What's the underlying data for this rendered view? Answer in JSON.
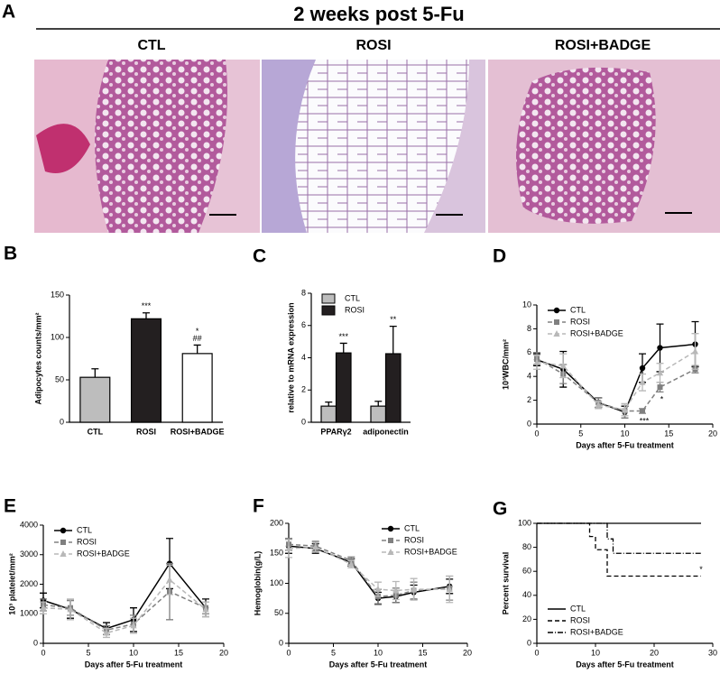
{
  "figure": {
    "panel_labels": [
      "A",
      "B",
      "C",
      "D",
      "E",
      "F",
      "G"
    ],
    "title": "2 weeks post 5-Fu",
    "image_labels": [
      "CTL",
      "ROSI",
      "ROSI+BADGE"
    ]
  },
  "chart_data": [
    {
      "type": "bar",
      "y_label": "Adipocytes counts/mm²",
      "categories": [
        "CTL",
        "ROSI",
        "ROSI+BADGE"
      ],
      "values": [
        53,
        122,
        81
      ],
      "errors": [
        10,
        7,
        10
      ],
      "colors": [
        "#bdbdbd",
        "#231f20",
        "#ffffff"
      ],
      "annotations": [
        null,
        [
          "***"
        ],
        [
          "*",
          "##"
        ]
      ],
      "ylim": [
        0,
        150
      ],
      "yticks": [
        0,
        50,
        100,
        150
      ]
    },
    {
      "type": "bar",
      "y_label": "relative to mRNA expression",
      "categories": [
        "PPARγ2",
        "adiponectin"
      ],
      "series": [
        {
          "name": "CTL",
          "color": "#bdbdbd",
          "values": [
            1.0,
            1.0
          ],
          "errors": [
            0.25,
            0.3
          ]
        },
        {
          "name": "ROSI",
          "color": "#231f20",
          "values": [
            4.3,
            4.25
          ],
          "errors": [
            0.6,
            1.7
          ],
          "annotations": [
            "***",
            "**"
          ]
        }
      ],
      "ylim": [
        0,
        8
      ],
      "yticks": [
        0,
        2,
        4,
        6,
        8
      ],
      "legend": "upper left"
    },
    {
      "type": "line",
      "x_label": "Days after 5-Fu treatment",
      "y_label": "10³WBC/mm²",
      "x": [
        0,
        3,
        7,
        10,
        12,
        14,
        18
      ],
      "series": [
        {
          "name": "CTL",
          "color": "#000000",
          "marker": "circle",
          "dash": "solid",
          "values": [
            5.4,
            4.6,
            1.8,
            1.0,
            4.7,
            6.4,
            6.7
          ],
          "errors": [
            0.5,
            1.5,
            0.4,
            0.5,
            1.2,
            2.0,
            1.9
          ]
        },
        {
          "name": "ROSI",
          "color": "#808080",
          "marker": "square",
          "dash": "dashed",
          "values": [
            5.5,
            4.2,
            1.8,
            1.1,
            1.1,
            3.1,
            4.6
          ],
          "errors": [
            0.5,
            0.8,
            0.4,
            0.6,
            0.2,
            0.4,
            0.3
          ],
          "annotations": [
            null,
            null,
            null,
            null,
            "***",
            "*",
            null
          ]
        },
        {
          "name": "ROSI+BADGE",
          "color": "#b8b8b8",
          "marker": "triangle",
          "dash": "dashed",
          "values": [
            5.2,
            4.9,
            1.6,
            1.2,
            3.5,
            4.3,
            6.1
          ],
          "errors": [
            0.6,
            1.0,
            0.3,
            0.5,
            0.7,
            0.8,
            1.5
          ]
        }
      ],
      "xlim": [
        0,
        20
      ],
      "xticks": [
        0,
        5,
        10,
        15,
        20
      ],
      "ylim": [
        0,
        10
      ],
      "yticks": [
        0,
        2,
        4,
        6,
        8,
        10
      ],
      "legend": "upper left"
    },
    {
      "type": "line",
      "x_label": "Days after 5-Fu treatment",
      "y_label": "10³ platelet/mm²",
      "x": [
        0,
        3,
        7,
        10,
        14,
        18
      ],
      "series": [
        {
          "name": "CTL",
          "color": "#000000",
          "marker": "circle",
          "dash": "solid",
          "values": [
            1450,
            1150,
            500,
            800,
            2700,
            1200
          ],
          "errors": [
            250,
            300,
            200,
            400,
            850,
            300
          ]
        },
        {
          "name": "ROSI",
          "color": "#808080",
          "marker": "square",
          "dash": "dashed",
          "values": [
            1300,
            1200,
            450,
            650,
            1750,
            1200
          ],
          "errors": [
            200,
            250,
            150,
            300,
            950,
            200
          ]
        },
        {
          "name": "ROSI+BADGE",
          "color": "#b8b8b8",
          "marker": "triangle",
          "dash": "dashed",
          "values": [
            1200,
            1150,
            350,
            600,
            2150,
            1150
          ],
          "errors": [
            200,
            350,
            150,
            250,
            500,
            250
          ]
        }
      ],
      "xlim": [
        0,
        20
      ],
      "xticks": [
        0,
        5,
        10,
        15,
        20
      ],
      "ylim": [
        0,
        4000
      ],
      "yticks": [
        0,
        1000,
        2000,
        3000,
        4000
      ],
      "legend": "upper left"
    },
    {
      "type": "line",
      "x_label": "Days after 5-Fu treatment",
      "y_label": "Hemoglobin(g/L)",
      "x": [
        0,
        3,
        7,
        10,
        12,
        14,
        18
      ],
      "series": [
        {
          "name": "CTL",
          "color": "#000000",
          "marker": "circle",
          "dash": "solid",
          "values": [
            162,
            158,
            135,
            75,
            78,
            85,
            95
          ],
          "errors": [
            12,
            8,
            6,
            10,
            10,
            12,
            12
          ]
        },
        {
          "name": "ROSI",
          "color": "#808080",
          "marker": "square",
          "dash": "dashed",
          "values": [
            165,
            162,
            138,
            78,
            80,
            88,
            92
          ],
          "errors": [
            10,
            8,
            6,
            12,
            12,
            14,
            20
          ]
        },
        {
          "name": "ROSI+BADGE",
          "color": "#b8b8b8",
          "marker": "triangle",
          "dash": "dashed",
          "values": [
            158,
            160,
            132,
            90,
            88,
            90,
            90
          ],
          "errors": [
            15,
            8,
            6,
            12,
            15,
            18,
            22
          ]
        }
      ],
      "xlim": [
        0,
        20
      ],
      "xticks": [
        0,
        5,
        10,
        15,
        20
      ],
      "ylim": [
        0,
        200
      ],
      "yticks": [
        0,
        50,
        100,
        150,
        200
      ],
      "legend": "upper right"
    },
    {
      "type": "survival",
      "x_label": "Days after 5-Fu treatment",
      "y_label": "Percent survival",
      "series": [
        {
          "name": "CTL",
          "color": "#000000",
          "dash": "solid",
          "x": [
            0,
            28
          ],
          "values": [
            100,
            100
          ]
        },
        {
          "name": "ROSI",
          "color": "#000000",
          "dash": "dashed",
          "x": [
            0,
            9,
            10,
            12,
            28
          ],
          "values": [
            100,
            89,
            78,
            56,
            56
          ],
          "annotations": [
            null,
            null,
            null,
            null,
            "*"
          ]
        },
        {
          "name": "ROSI+BADGE",
          "color": "#000000",
          "dash": "dashdot",
          "x": [
            0,
            12,
            13,
            28
          ],
          "values": [
            100,
            87,
            75,
            75
          ]
        }
      ],
      "xlim": [
        0,
        30
      ],
      "xticks": [
        0,
        10,
        20,
        30
      ],
      "ylim": [
        0,
        100
      ],
      "yticks": [
        0,
        20,
        40,
        60,
        80,
        100
      ],
      "legend": "lower left"
    }
  ]
}
